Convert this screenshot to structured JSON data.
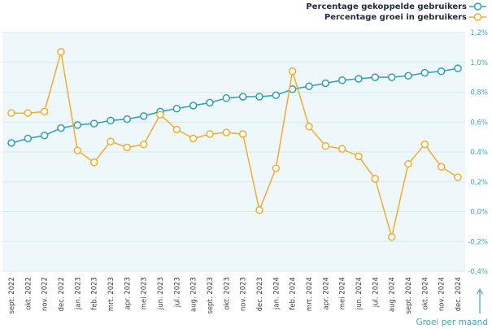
{
  "chart_data": {
    "type": "line",
    "categories": [
      "sept. 2022",
      "okt. 2022",
      "nov. 2022",
      "dec. 2022",
      "jan. 2023",
      "feb. 2023",
      "mrt. 2023",
      "apr. 2023",
      "mei 2023",
      "jun. 2023",
      "jul. 2023",
      "aug. 2023",
      "sept. 2023",
      "okt. 2023",
      "nov. 2023",
      "dec. 2023",
      "jan. 2024",
      "feb. 2024",
      "mrt. 2024",
      "apr. 2024",
      "mei 2024",
      "jun. 2024",
      "jul. 2024",
      "aug. 2024",
      "sept. 2024",
      "okt. 2024",
      "nov. 2024",
      "dec. 2024"
    ],
    "series": [
      {
        "name": "Percentage gekoppelde gebruikers",
        "color": "#2e9fb5",
        "values": [
          0.46,
          0.49,
          0.51,
          0.56,
          0.58,
          0.59,
          0.61,
          0.62,
          0.64,
          0.67,
          0.69,
          0.71,
          0.73,
          0.76,
          0.77,
          0.77,
          0.78,
          0.82,
          0.84,
          0.86,
          0.88,
          0.89,
          0.9,
          0.9,
          0.91,
          0.93,
          0.94,
          0.96
        ]
      },
      {
        "name": "Percentage groei in gebruikers",
        "color": "#f3ac2c",
        "values": [
          0.66,
          0.66,
          0.67,
          1.07,
          0.41,
          0.33,
          0.47,
          0.43,
          0.45,
          0.65,
          0.55,
          0.49,
          0.52,
          0.53,
          0.52,
          0.01,
          0.29,
          0.94,
          0.57,
          0.44,
          0.42,
          0.37,
          0.22,
          -0.17,
          0.32,
          0.45,
          0.3,
          0.23
        ]
      }
    ],
    "y_ticks": [
      "1,2%",
      "1,0%",
      "0,8%",
      "0,6%",
      "0,4%",
      "0,2%",
      "0,0%",
      "-0,2%",
      "-0,4%"
    ],
    "y_tick_values": [
      1.2,
      1.0,
      0.8,
      0.6,
      0.4,
      0.2,
      0.0,
      -0.2,
      -0.4
    ],
    "ylim": [
      -0.4,
      1.2
    ],
    "ylabel": "Groei per maand",
    "grid": true,
    "legend_position": "top-right",
    "colors": {
      "plot_background": "#eef7fa",
      "gridline": "#d3eaf0",
      "axis_text": "#3aa9c0"
    }
  }
}
